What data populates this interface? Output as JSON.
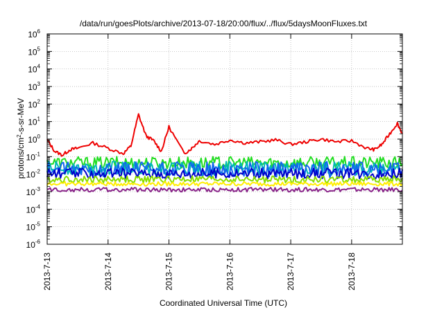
{
  "chart_data": {
    "type": "line",
    "title": "/data/run/goesPlots/archive/2013-07-18/20:00/flux/../flux/5daysMoonFluxes.txt",
    "xlabel": "Coordinated Universal Time (UTC)",
    "ylabel_parts": [
      "protons/cm",
      "2",
      "-s-sr-MeV"
    ],
    "yscale": "log",
    "ylim": [
      1e-06,
      1000000.0
    ],
    "xlim": [
      "2013-07-13",
      "2013-07-18 20:00"
    ],
    "grid": true,
    "x_tick_labels": [
      "2013-7-13",
      "2013-7-14",
      "2013-7-15",
      "2013-7-16",
      "2013-7-17",
      "2013-7-18"
    ],
    "y_tick_exponents": [
      "-6",
      "-5",
      "-4",
      "-3",
      "-2",
      "-1",
      "0",
      "1",
      "2",
      "3",
      "4",
      "5",
      "6"
    ],
    "series": [
      {
        "color": "#ee0000",
        "x": [
          "2013-07-13 00:00",
          "2013-07-13 03:00",
          "2013-07-13 06:00",
          "2013-07-13 09:00",
          "2013-07-13 12:00",
          "2013-07-13 18:00",
          "2013-07-14 00:00",
          "2013-07-14 06:00",
          "2013-07-14 09:00",
          "2013-07-14 12:00",
          "2013-07-14 15:00",
          "2013-07-14 18:00",
          "2013-07-14 21:00",
          "2013-07-15 00:00",
          "2013-07-15 06:00",
          "2013-07-15 09:00",
          "2013-07-15 12:00",
          "2013-07-15 18:00",
          "2013-07-16 00:00",
          "2013-07-16 06:00",
          "2013-07-16 12:00",
          "2013-07-16 18:00",
          "2013-07-17 00:00",
          "2013-07-17 06:00",
          "2013-07-17 12:00",
          "2013-07-17 18:00",
          "2013-07-18 00:00",
          "2013-07-18 06:00",
          "2013-07-18 09:00",
          "2013-07-18 12:00",
          "2013-07-18 15:00",
          "2013-07-18 18:00",
          "2013-07-18 20:00"
        ],
        "values": [
          0.9,
          0.2,
          0.12,
          0.25,
          0.3,
          0.6,
          0.3,
          0.15,
          0.4,
          25,
          1.5,
          0.8,
          0.2,
          5,
          0.15,
          0.3,
          0.8,
          0.5,
          0.9,
          0.6,
          0.7,
          0.9,
          0.5,
          0.7,
          1.0,
          0.7,
          0.8,
          0.3,
          0.25,
          0.5,
          2.0,
          8,
          2.0
        ]
      },
      {
        "color": "#22dd22",
        "level": 0.045,
        "jitter": 0.35
      },
      {
        "color": "#00b8b8",
        "level": 0.022,
        "jitter": 0.4
      },
      {
        "color": "#1166ee",
        "level": 0.018,
        "jitter": 0.45
      },
      {
        "color": "#0000cc",
        "level": 0.011,
        "jitter": 0.3
      },
      {
        "color": "#88dd00",
        "level": 0.005,
        "jitter": 0.2
      },
      {
        "color": "#ffee00",
        "level": 0.0028,
        "jitter": 0.12
      },
      {
        "color": "#882288",
        "level": 0.0013,
        "jitter": 0.12
      }
    ]
  }
}
